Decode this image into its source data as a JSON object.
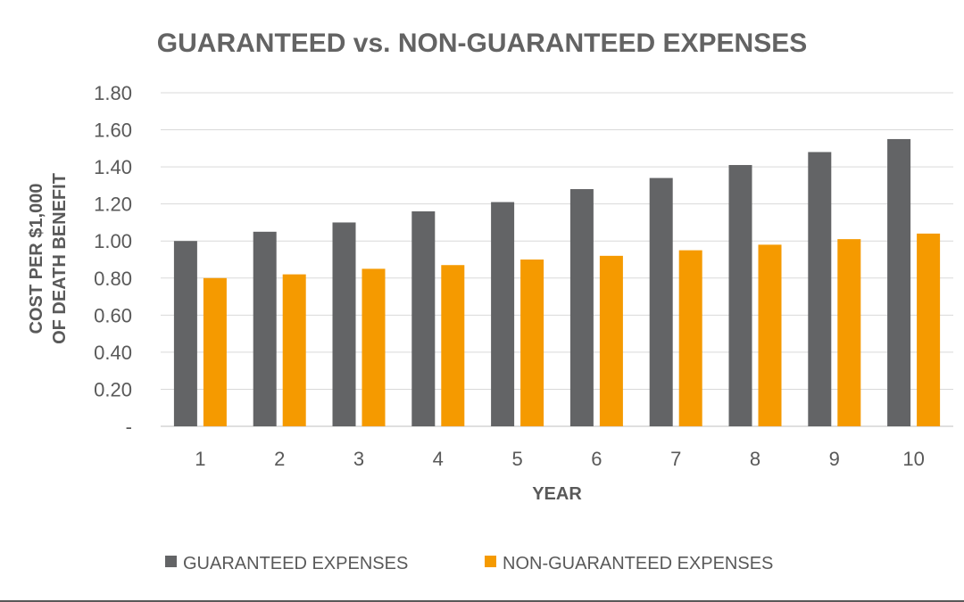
{
  "chart_data": {
    "type": "bar",
    "title": "GUARANTEED vs. NON-GUARANTEED EXPENSES",
    "xlabel": "YEAR",
    "ylabel_line1": "COST PER $1,000",
    "ylabel_line2": "OF DEATH BENEFIT",
    "categories": [
      "1",
      "2",
      "3",
      "4",
      "5",
      "6",
      "7",
      "8",
      "9",
      "10"
    ],
    "ylim": [
      0,
      1.8
    ],
    "yticks": [
      {
        "value": 0,
        "label": "-"
      },
      {
        "value": 0.2,
        "label": "0.20"
      },
      {
        "value": 0.4,
        "label": "0.40"
      },
      {
        "value": 0.6,
        "label": "0.60"
      },
      {
        "value": 0.8,
        "label": "0.80"
      },
      {
        "value": 1.0,
        "label": "1.00"
      },
      {
        "value": 1.2,
        "label": "1.20"
      },
      {
        "value": 1.4,
        "label": "1.40"
      },
      {
        "value": 1.6,
        "label": "1.60"
      },
      {
        "value": 1.8,
        "label": "1.80"
      }
    ],
    "grid": true,
    "legend_position": "bottom",
    "series": [
      {
        "name": "GUARANTEED EXPENSES",
        "color": "#636466",
        "values": [
          1.0,
          1.05,
          1.1,
          1.16,
          1.21,
          1.28,
          1.34,
          1.41,
          1.48,
          1.55
        ]
      },
      {
        "name": "NON-GUARANTEED EXPENSES",
        "color": "#F59A00",
        "values": [
          0.8,
          0.82,
          0.85,
          0.87,
          0.9,
          0.92,
          0.95,
          0.98,
          1.01,
          1.04
        ]
      }
    ]
  }
}
